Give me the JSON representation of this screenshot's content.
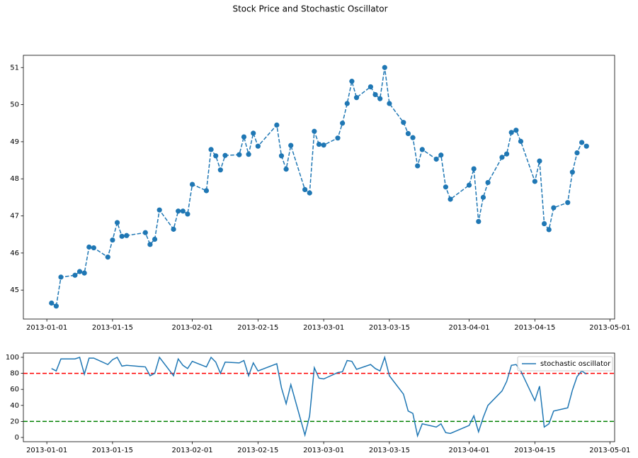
{
  "title": "Stock Price and Stochastic Oscillator",
  "chart_data": [
    {
      "type": "line",
      "marker": "o",
      "linestyle": "dashed",
      "color": "#1f77b4",
      "x": [
        "2013-01-02",
        "2013-01-03",
        "2013-01-04",
        "2013-01-07",
        "2013-01-08",
        "2013-01-09",
        "2013-01-10",
        "2013-01-11",
        "2013-01-14",
        "2013-01-15",
        "2013-01-16",
        "2013-01-17",
        "2013-01-18",
        "2013-01-22",
        "2013-01-23",
        "2013-01-24",
        "2013-01-25",
        "2013-01-28",
        "2013-01-29",
        "2013-01-30",
        "2013-01-31",
        "2013-02-01",
        "2013-02-04",
        "2013-02-05",
        "2013-02-06",
        "2013-02-07",
        "2013-02-08",
        "2013-02-11",
        "2013-02-12",
        "2013-02-13",
        "2013-02-14",
        "2013-02-15",
        "2013-02-19",
        "2013-02-20",
        "2013-02-21",
        "2013-02-22",
        "2013-02-25",
        "2013-02-26",
        "2013-02-27",
        "2013-02-28",
        "2013-03-01",
        "2013-03-04",
        "2013-03-05",
        "2013-03-06",
        "2013-03-07",
        "2013-03-08",
        "2013-03-11",
        "2013-03-12",
        "2013-03-13",
        "2013-03-14",
        "2013-03-15",
        "2013-03-18",
        "2013-03-19",
        "2013-03-20",
        "2013-03-21",
        "2013-03-22",
        "2013-03-25",
        "2013-03-26",
        "2013-03-27",
        "2013-03-28",
        "2013-04-01",
        "2013-04-02",
        "2013-04-03",
        "2013-04-04",
        "2013-04-05",
        "2013-04-08",
        "2013-04-09",
        "2013-04-10",
        "2013-04-11",
        "2013-04-12",
        "2013-04-15",
        "2013-04-16",
        "2013-04-17",
        "2013-04-18",
        "2013-04-19",
        "2013-04-22",
        "2013-04-23",
        "2013-04-24",
        "2013-04-25",
        "2013-04-26"
      ],
      "values": [
        44.65,
        44.57,
        45.35,
        45.4,
        45.5,
        45.46,
        46.16,
        46.14,
        45.89,
        46.35,
        46.82,
        46.45,
        46.47,
        46.55,
        46.23,
        46.37,
        47.16,
        46.64,
        47.13,
        47.13,
        47.05,
        47.85,
        47.68,
        48.79,
        48.62,
        48.24,
        48.63,
        48.65,
        49.13,
        48.66,
        49.23,
        48.88,
        49.45,
        48.62,
        48.26,
        48.9,
        47.71,
        47.62,
        49.28,
        48.93,
        48.91,
        49.1,
        49.5,
        50.03,
        50.63,
        50.19,
        50.48,
        50.27,
        50.16,
        51.0,
        50.03,
        49.52,
        49.22,
        49.11,
        48.35,
        48.79,
        48.53,
        48.64,
        47.78,
        47.45,
        47.83,
        48.27,
        46.85,
        47.5,
        47.9,
        48.58,
        48.67,
        49.25,
        49.31,
        49.01,
        47.93,
        48.48,
        46.79,
        46.63,
        47.22,
        47.36,
        48.18,
        48.7,
        48.98,
        48.88
      ],
      "xlim": [
        "2012-12-27",
        "2013-05-02"
      ],
      "xticks": [
        "2013-01-01",
        "2013-01-15",
        "2013-02-01",
        "2013-02-15",
        "2013-03-01",
        "2013-03-15",
        "2013-04-01",
        "2013-04-15",
        "2013-05-01"
      ],
      "ylim": [
        44.22,
        51.33
      ],
      "yticks": [
        45,
        46,
        47,
        48,
        49,
        50,
        51
      ]
    },
    {
      "type": "line",
      "legend": "upper right",
      "x": [
        "2013-01-02",
        "2013-01-03",
        "2013-01-04",
        "2013-01-07",
        "2013-01-08",
        "2013-01-09",
        "2013-01-10",
        "2013-01-11",
        "2013-01-14",
        "2013-01-15",
        "2013-01-16",
        "2013-01-17",
        "2013-01-18",
        "2013-01-22",
        "2013-01-23",
        "2013-01-24",
        "2013-01-25",
        "2013-01-28",
        "2013-01-29",
        "2013-01-30",
        "2013-01-31",
        "2013-02-01",
        "2013-02-04",
        "2013-02-05",
        "2013-02-06",
        "2013-02-07",
        "2013-02-08",
        "2013-02-11",
        "2013-02-12",
        "2013-02-13",
        "2013-02-14",
        "2013-02-15",
        "2013-02-19",
        "2013-02-20",
        "2013-02-21",
        "2013-02-22",
        "2013-02-25",
        "2013-02-26",
        "2013-02-27",
        "2013-02-28",
        "2013-03-01",
        "2013-03-04",
        "2013-03-05",
        "2013-03-06",
        "2013-03-07",
        "2013-03-08",
        "2013-03-11",
        "2013-03-12",
        "2013-03-13",
        "2013-03-14",
        "2013-03-15",
        "2013-03-18",
        "2013-03-19",
        "2013-03-20",
        "2013-03-21",
        "2013-03-22",
        "2013-03-25",
        "2013-03-26",
        "2013-03-27",
        "2013-03-28",
        "2013-04-01",
        "2013-04-02",
        "2013-04-03",
        "2013-04-04",
        "2013-04-05",
        "2013-04-08",
        "2013-04-09",
        "2013-04-10",
        "2013-04-11",
        "2013-04-12",
        "2013-04-15",
        "2013-04-16",
        "2013-04-17",
        "2013-04-18",
        "2013-04-19",
        "2013-04-22",
        "2013-04-23",
        "2013-04-24",
        "2013-04-25",
        "2013-04-26"
      ],
      "series": [
        {
          "name": "stochastic oscillator",
          "color": "#1f77b4",
          "values": [
            86,
            83,
            98,
            98,
            100,
            79,
            99,
            99,
            91,
            97,
            100,
            89,
            90,
            88,
            77,
            80,
            100,
            77,
            98,
            90,
            86,
            95,
            88,
            100,
            94,
            80,
            94,
            93,
            96,
            77,
            93,
            83,
            92,
            62,
            42,
            66,
            3,
            27,
            87,
            74,
            73,
            81,
            82,
            96,
            95,
            85,
            91,
            86,
            83,
            100,
            77,
            54,
            33,
            30,
            2,
            17,
            13,
            17,
            6,
            5,
            15,
            27,
            7,
            25,
            40,
            58,
            70,
            90,
            91,
            83,
            46,
            64,
            13,
            17,
            33,
            37,
            59,
            76,
            83,
            79
          ]
        }
      ],
      "hlines": [
        {
          "value": 80,
          "color": "#ff0000"
        },
        {
          "value": 20,
          "color": "#008000"
        }
      ],
      "xlim": [
        "2012-12-27",
        "2013-05-02"
      ],
      "xticks": [
        "2013-01-01",
        "2013-01-15",
        "2013-02-01",
        "2013-02-15",
        "2013-03-01",
        "2013-03-15",
        "2013-04-01",
        "2013-04-15",
        "2013-05-01"
      ],
      "ylim": [
        -5.3,
        105.3
      ],
      "yticks": [
        0,
        20,
        40,
        60,
        80,
        100
      ]
    }
  ]
}
